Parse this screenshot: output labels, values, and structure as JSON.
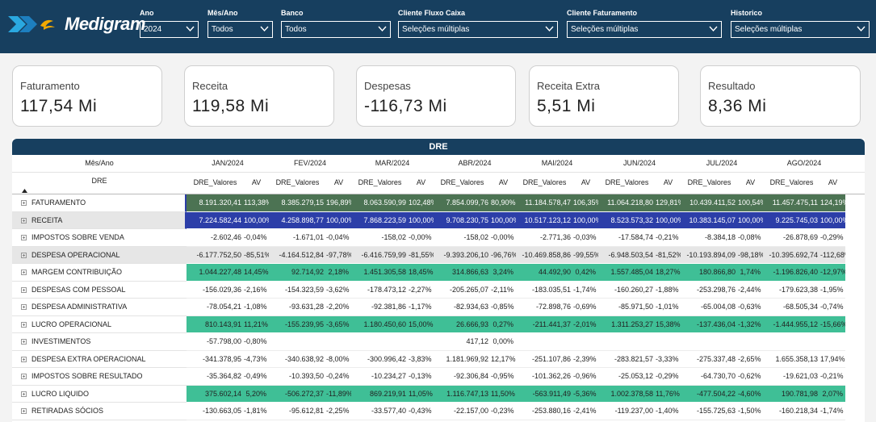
{
  "header": {
    "logo_text": "Medigram",
    "filters": [
      {
        "label": "Ano",
        "value": "2024"
      },
      {
        "label": "Mês/Ano",
        "value": "Todos"
      },
      {
        "label": "Banco",
        "value": "Todos"
      },
      {
        "label": "Cliente Fluxo Caixa",
        "value": "Seleções múltiplas"
      },
      {
        "label": "Cliente Faturamento",
        "value": "Seleções múltiplas"
      },
      {
        "label": "Historico",
        "value": "Seleções múltiplas"
      }
    ]
  },
  "cards": [
    {
      "label": "Faturamento",
      "value": "117,54 Mi"
    },
    {
      "label": "Receita",
      "value": "119,58 Mi"
    },
    {
      "label": "Despesas",
      "value": "-116,73 Mi"
    },
    {
      "label": "Receita Extra",
      "value": "5,51 Mi"
    },
    {
      "label": "Resultado",
      "value": "8,36 Mi"
    }
  ],
  "table": {
    "title": "DRE",
    "corner_top": "Mês/Ano",
    "corner_bottom": "DRE",
    "sort_icon": "sort-up-icon",
    "months": [
      "JAN/2024",
      "FEV/2024",
      "MAR/2024",
      "ABR/2024",
      "MAI/2024",
      "JUN/2024",
      "JUL/2024",
      "AGO/2024"
    ],
    "col_value": "DRE_Valores",
    "col_av": "AV",
    "colors": {
      "faturamento": "#4c7353",
      "receita": "#2c3ea8",
      "highlight": "#3fbf96",
      "grey": "#e6e6e6"
    },
    "rows": [
      {
        "label": "FATURAMENTO",
        "style": "faturamento",
        "cells": [
          [
            "8.191.320,41",
            "113,38%"
          ],
          [
            "8.385.279,15",
            "196,89%"
          ],
          [
            "8.063.590,99",
            "102,48%"
          ],
          [
            "7.854.099,76",
            "80,90%"
          ],
          [
            "11.184.578,47",
            "106,35%"
          ],
          [
            "11.064.218,80",
            "129,81%"
          ],
          [
            "10.439.411,52",
            "100,54%"
          ],
          [
            "11.457.475,11",
            "124,19%"
          ]
        ]
      },
      {
        "label": "RECEITA",
        "style": "receita",
        "cells": [
          [
            "7.224.582,44",
            "100,00%"
          ],
          [
            "4.258.898,77",
            "100,00%"
          ],
          [
            "7.868.223,59",
            "100,00%"
          ],
          [
            "9.708.230,75",
            "100,00%"
          ],
          [
            "10.517.123,12",
            "100,00%"
          ],
          [
            "8.523.573,32",
            "100,00%"
          ],
          [
            "10.383.145,07",
            "100,00%"
          ],
          [
            "9.225.745,03",
            "100,00%"
          ]
        ]
      },
      {
        "label": "IMPOSTOS SOBRE VENDA",
        "style": "plain",
        "cells": [
          [
            "-2.602,46",
            "-0,04%"
          ],
          [
            "-1.671,01",
            "-0,04%"
          ],
          [
            "-158,02",
            "-0,00%"
          ],
          [
            "-158,02",
            "-0,00%"
          ],
          [
            "-2.771,36",
            "-0,03%"
          ],
          [
            "-17.584,74",
            "-0,21%"
          ],
          [
            "-8.384,18",
            "-0,08%"
          ],
          [
            "-26.878,69",
            "-0,29%"
          ]
        ]
      },
      {
        "label": "DESPESA OPERACIONAL",
        "style": "grey",
        "cells": [
          [
            "-6.177.752,50",
            "-85,51%"
          ],
          [
            "-4.164.512,84",
            "-97,78%"
          ],
          [
            "-6.416.759,99",
            "-81,55%"
          ],
          [
            "-9.393.206,10",
            "-96,76%"
          ],
          [
            "-10.469.858,86",
            "-99,55%"
          ],
          [
            "-6.948.503,54",
            "-81,52%"
          ],
          [
            "-10.193.894,09",
            "-98,18%"
          ],
          [
            "-10.395.692,74",
            "-112,68%"
          ]
        ]
      },
      {
        "label": "MARGEM CONTRIBUIÇÃO",
        "style": "highlight",
        "cells": [
          [
            "1.044.227,48",
            "14,45%"
          ],
          [
            "92.714,92",
            "2,18%"
          ],
          [
            "1.451.305,58",
            "18,45%"
          ],
          [
            "314.866,63",
            "3,24%"
          ],
          [
            "44.492,90",
            "0,42%"
          ],
          [
            "1.557.485,04",
            "18,27%"
          ],
          [
            "180.866,80",
            "1,74%"
          ],
          [
            "-1.196.826,40",
            "-12,97%"
          ]
        ]
      },
      {
        "label": "DESPESAS COM PESSOAL",
        "style": "plain",
        "cells": [
          [
            "-156.029,36",
            "-2,16%"
          ],
          [
            "-154.323,59",
            "-3,62%"
          ],
          [
            "-178.473,12",
            "-2,27%"
          ],
          [
            "-205.265,07",
            "-2,11%"
          ],
          [
            "-183.035,51",
            "-1,74%"
          ],
          [
            "-160.260,27",
            "-1,88%"
          ],
          [
            "-253.298,76",
            "-2,44%"
          ],
          [
            "-179.623,38",
            "-1,95%"
          ]
        ]
      },
      {
        "label": "DESPESA ADMINISTRATIVA",
        "style": "plain",
        "cells": [
          [
            "-78.054,21",
            "-1,08%"
          ],
          [
            "-93.631,28",
            "-2,20%"
          ],
          [
            "-92.381,86",
            "-1,17%"
          ],
          [
            "-82.934,63",
            "-0,85%"
          ],
          [
            "-72.898,76",
            "-0,69%"
          ],
          [
            "-85.971,50",
            "-1,01%"
          ],
          [
            "-65.004,08",
            "-0,63%"
          ],
          [
            "-68.505,34",
            "-0,74%"
          ]
        ]
      },
      {
        "label": "LUCRO OPERACIONAL",
        "style": "highlight",
        "cells": [
          [
            "810.143,91",
            "11,21%"
          ],
          [
            "-155.239,95",
            "-3,65%"
          ],
          [
            "1.180.450,60",
            "15,00%"
          ],
          [
            "26.666,93",
            "0,27%"
          ],
          [
            "-211.441,37",
            "-2,01%"
          ],
          [
            "1.311.253,27",
            "15,38%"
          ],
          [
            "-137.436,04",
            "-1,32%"
          ],
          [
            "-1.444.955,12",
            "-15,66%"
          ]
        ]
      },
      {
        "label": "INVESTIMENTOS",
        "style": "plain",
        "cells": [
          [
            "-57.798,00",
            "-0,80%"
          ],
          [
            "",
            ""
          ],
          [
            "",
            ""
          ],
          [
            "417,12",
            "0,00%"
          ],
          [
            "",
            ""
          ],
          [
            "",
            ""
          ],
          [
            "",
            ""
          ],
          [
            "",
            ""
          ]
        ]
      },
      {
        "label": "DESPESA EXTRA OPERACIONAL",
        "style": "plain",
        "cells": [
          [
            "-341.378,95",
            "-4,73%"
          ],
          [
            "-340.638,92",
            "-8,00%"
          ],
          [
            "-300.996,42",
            "-3,83%"
          ],
          [
            "1.181.969,92",
            "12,17%"
          ],
          [
            "-251.107,86",
            "-2,39%"
          ],
          [
            "-283.821,57",
            "-3,33%"
          ],
          [
            "-275.337,48",
            "-2,65%"
          ],
          [
            "1.655.358,13",
            "17,94%"
          ]
        ]
      },
      {
        "label": "IMPOSTOS SOBRE RESULTADO",
        "style": "plain",
        "cells": [
          [
            "-35.364,82",
            "-0,49%"
          ],
          [
            "-10.393,50",
            "-0,24%"
          ],
          [
            "-10.234,27",
            "-0,13%"
          ],
          [
            "-92.306,84",
            "-0,95%"
          ],
          [
            "-101.362,26",
            "-0,96%"
          ],
          [
            "-25.053,12",
            "-0,29%"
          ],
          [
            "-64.730,70",
            "-0,62%"
          ],
          [
            "-19.621,03",
            "-0,21%"
          ]
        ]
      },
      {
        "label": "LUCRO LIQUIDO",
        "style": "highlight",
        "cells": [
          [
            "375.602,14",
            "5,20%"
          ],
          [
            "-506.272,37",
            "-11,89%"
          ],
          [
            "869.219,91",
            "11,05%"
          ],
          [
            "1.116.747,13",
            "11,50%"
          ],
          [
            "-563.911,49",
            "-5,36%"
          ],
          [
            "1.002.378,58",
            "11,76%"
          ],
          [
            "-477.504,22",
            "-4,60%"
          ],
          [
            "190.781,98",
            "2,07%"
          ]
        ]
      },
      {
        "label": "RETIRADAS SÓCIOS",
        "style": "plain",
        "cells": [
          [
            "-130.663,05",
            "-1,81%"
          ],
          [
            "-95.612,81",
            "-2,25%"
          ],
          [
            "-33.577,40",
            "-0,43%"
          ],
          [
            "-22.157,00",
            "-0,23%"
          ],
          [
            "-253.880,16",
            "-2,41%"
          ],
          [
            "-119.237,00",
            "-1,40%"
          ],
          [
            "-155.725,63",
            "-1,50%"
          ],
          [
            "-160.218,34",
            "-1,74%"
          ]
        ]
      }
    ]
  }
}
